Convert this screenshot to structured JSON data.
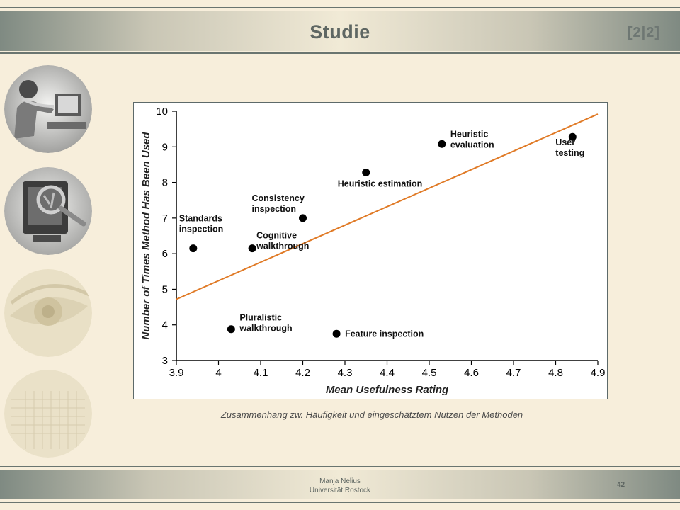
{
  "slide": {
    "title": "Studie",
    "pager": "[2|2]",
    "caption": "Zusammenhang zw. Häufigkeit und eingeschätztem Nutzen der Methoden",
    "author_line1": "Manja Nelius",
    "author_line2": "Universität Rostock",
    "page_number": "42"
  },
  "colors": {
    "background": "#f7eedb",
    "header_bar": "#7f8a82",
    "text_gray": "#5f6763",
    "trend_line": "#e07a26",
    "point": "#000000"
  },
  "icons": [
    "person-at-computer-image",
    "monitor-magnifier-image",
    "eye-image",
    "number-grid-image"
  ],
  "chart_data": {
    "type": "scatter",
    "xlabel": "Mean Usefulness Rating",
    "ylabel": "Number of Times Method Has Been Used",
    "xlim": [
      3.9,
      4.9
    ],
    "ylim": [
      3,
      10
    ],
    "xticks": [
      "3.9",
      "4",
      "4.1",
      "4.2",
      "4.3",
      "4.4",
      "4.5",
      "4.6",
      "4.7",
      "4.8",
      "4.9"
    ],
    "yticks": [
      "3",
      "4",
      "5",
      "6",
      "7",
      "8",
      "9",
      "10"
    ],
    "grid": false,
    "points": [
      {
        "label": "Standards inspection",
        "x": 3.94,
        "y": 6.15
      },
      {
        "label": "Cognitive walkthrough",
        "x": 4.08,
        "y": 6.15
      },
      {
        "label": "Consistency inspection",
        "x": 4.2,
        "y": 7.0
      },
      {
        "label": "Pluralistic walkthrough",
        "x": 4.03,
        "y": 3.88
      },
      {
        "label": "Feature inspection",
        "x": 4.28,
        "y": 3.75
      },
      {
        "label": "Heuristic estimation",
        "x": 4.35,
        "y": 8.28
      },
      {
        "label": "Heuristic evaluation",
        "x": 4.53,
        "y": 9.08
      },
      {
        "label": "User testing",
        "x": 4.84,
        "y": 9.28
      }
    ],
    "trendline": {
      "x": [
        3.9,
        4.9
      ],
      "y": [
        4.72,
        9.92
      ]
    }
  }
}
